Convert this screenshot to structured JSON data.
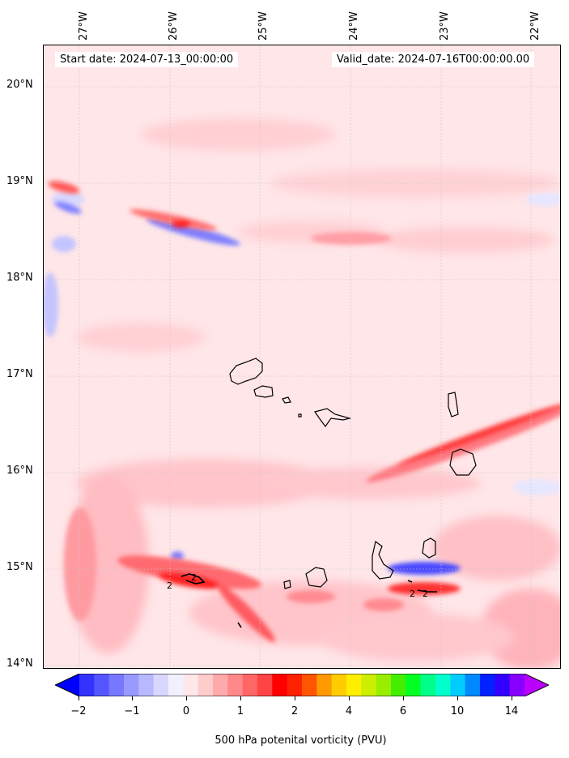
{
  "header": {
    "start_date": "Start date: 2024-07-13_00:00:00",
    "valid_date": "Valid_date: 2024-07-16T00:00:00.00"
  },
  "longitude_labels": [
    "27°W",
    "26°W",
    "25°W",
    "24°W",
    "23°W",
    "22°W"
  ],
  "latitude_labels": [
    "20°N",
    "19°N",
    "18°N",
    "17°N",
    "16°N",
    "15°N",
    "14°N"
  ],
  "colorbar": {
    "ticks": [
      "−2",
      "−1",
      "0",
      "1",
      "2",
      "4",
      "6",
      "10",
      "14"
    ],
    "label": "500 hPa potenital vorticity (PVU)",
    "colors": [
      "#0000ff",
      "#3333ff",
      "#5555ff",
      "#7777ff",
      "#9999ff",
      "#b8b8ff",
      "#d8d8ff",
      "#f0f0ff",
      "#ffe6e8",
      "#ffcccc",
      "#ffaaaa",
      "#ff8888",
      "#ff6666",
      "#ff4444",
      "#ff0000",
      "#ff2200",
      "#ff5500",
      "#ff9900",
      "#ffcc00",
      "#ffee00",
      "#ccee00",
      "#99ee00",
      "#44ee00",
      "#00ff22",
      "#00ff88",
      "#00ffcc",
      "#00ccff",
      "#0088ff",
      "#0022ff",
      "#3300ff",
      "#8800ff",
      "#bb00ff"
    ]
  },
  "map": {
    "extent": {
      "lon_min": -27.4,
      "lon_max": -21.75,
      "lat_min": 13.95,
      "lat_max": 20.45
    },
    "background_color": "#ffe6e8"
  }
}
